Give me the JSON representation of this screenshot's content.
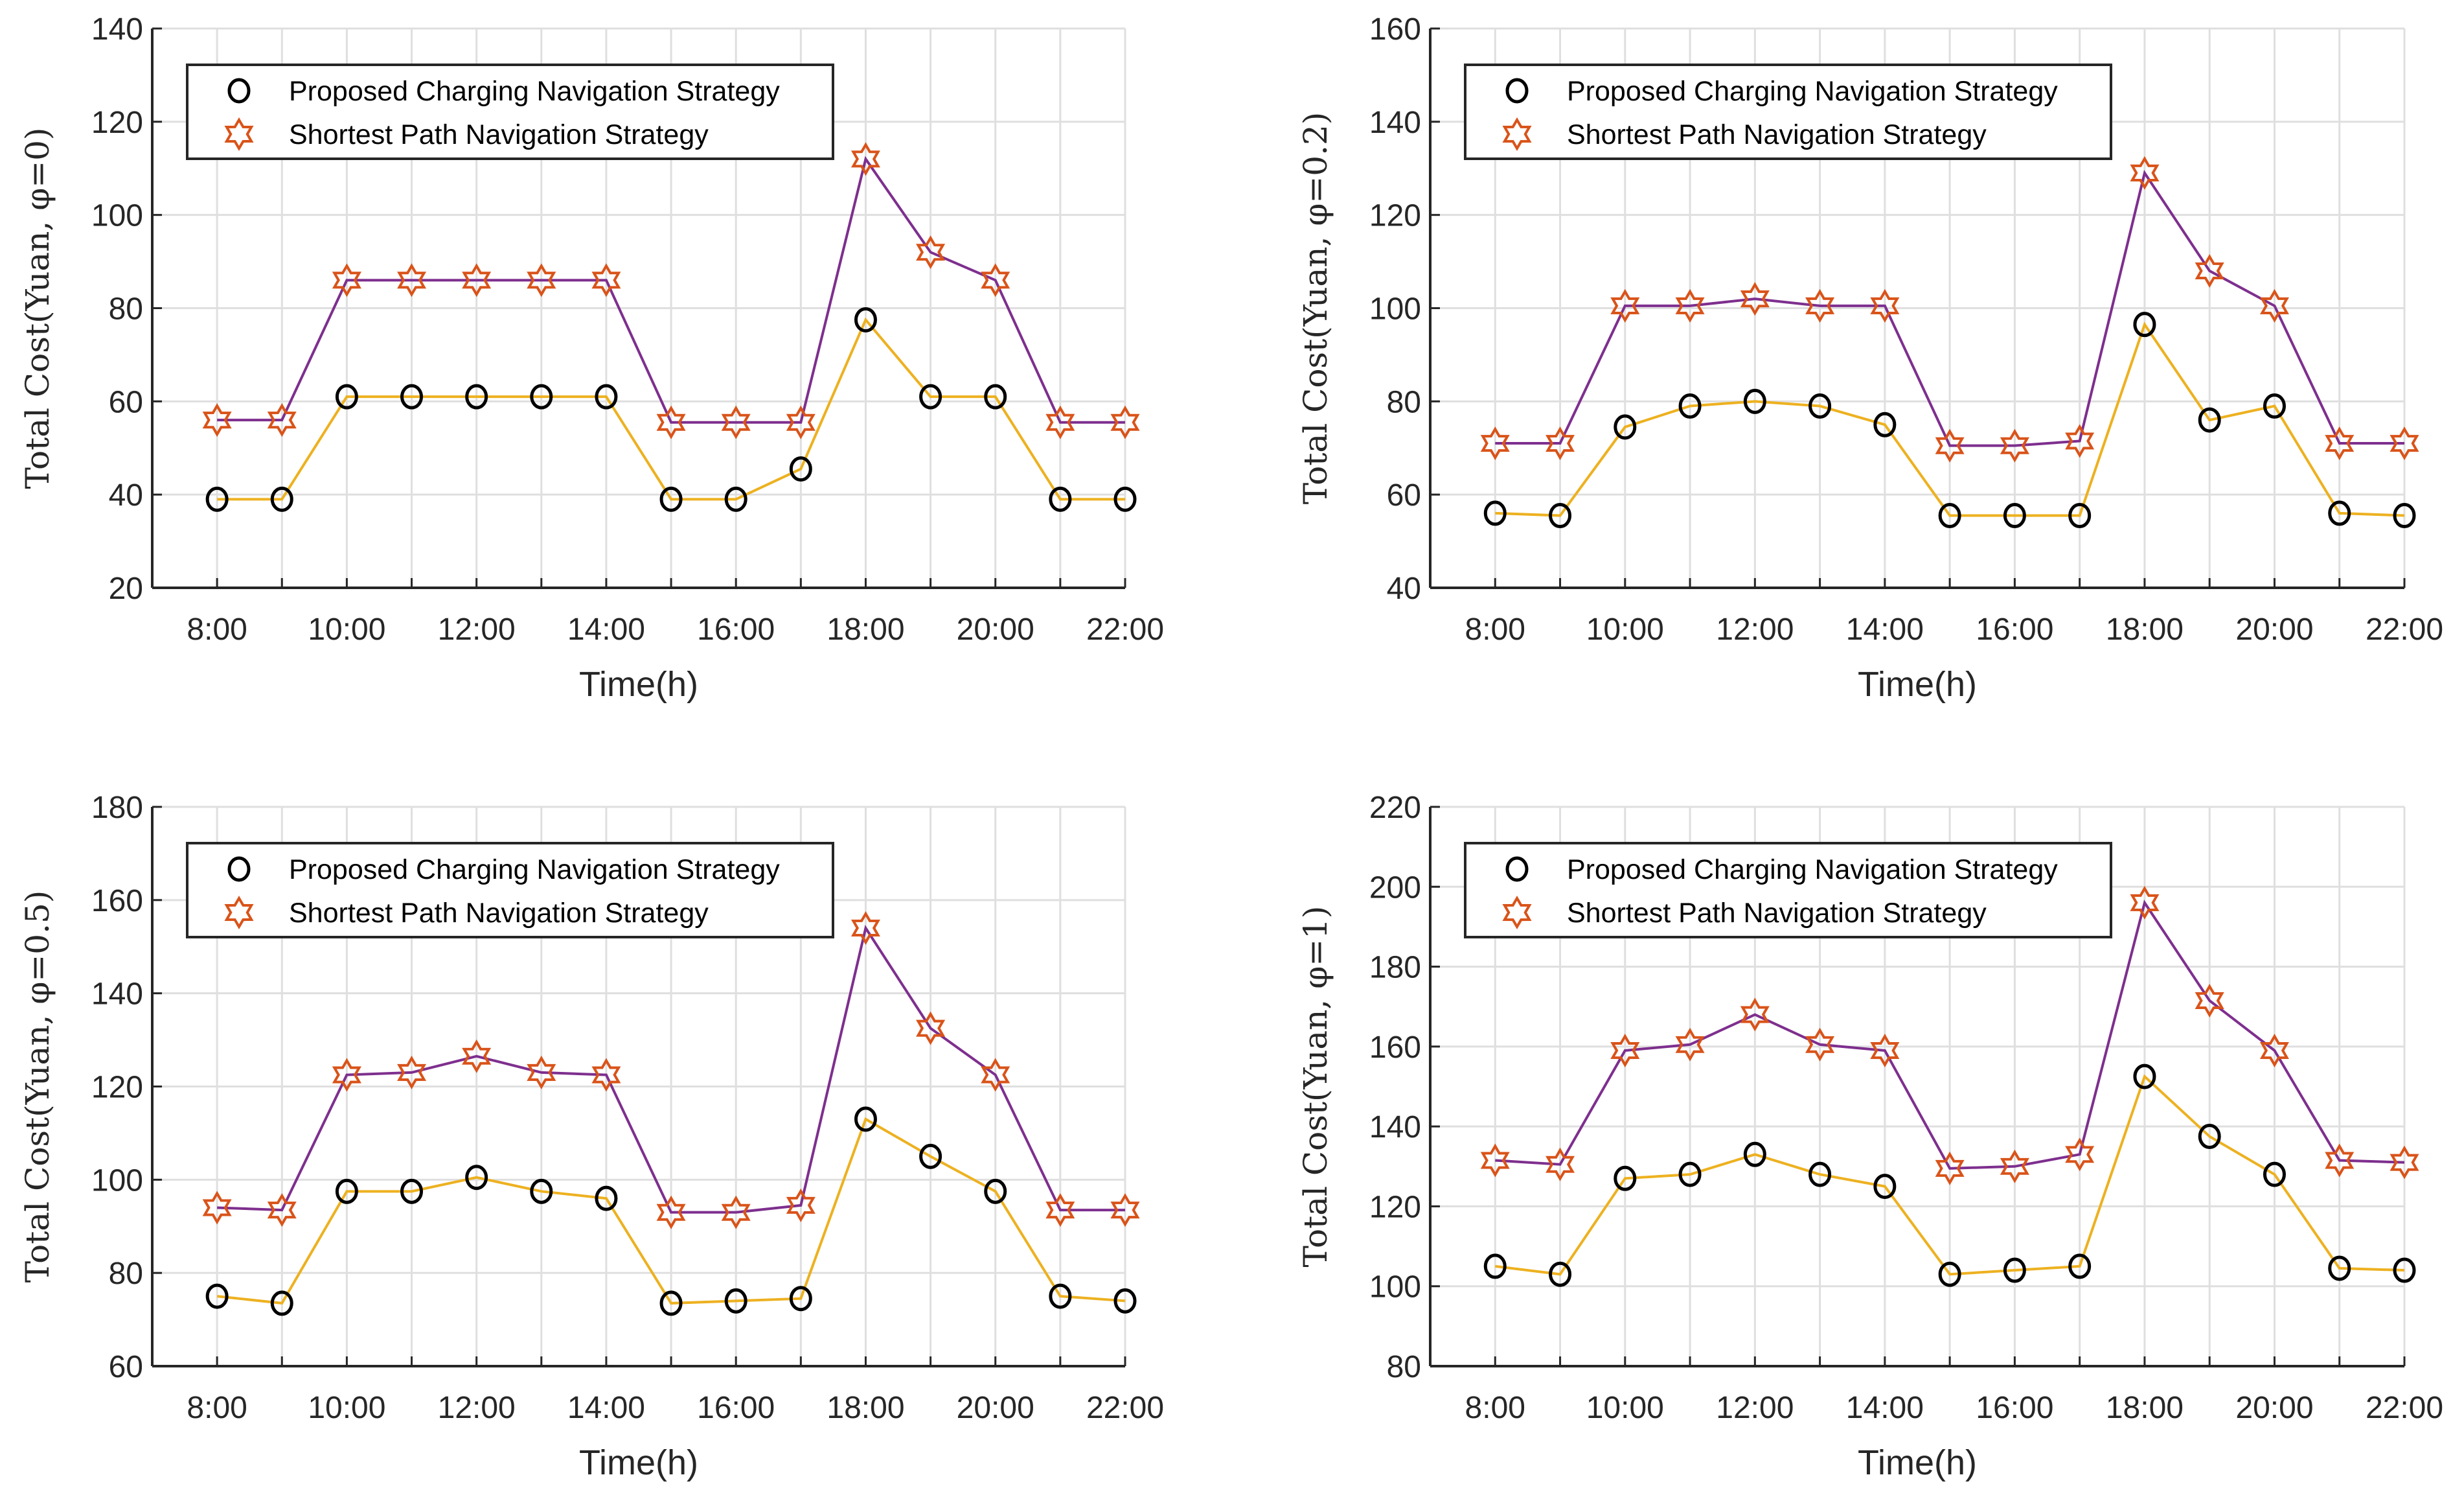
{
  "colors": {
    "proposed_line": "#EDB120",
    "shortest_line": "#7E2F8E",
    "star_marker": "#D95319",
    "circle_marker": "#000000",
    "grid": "#dfdfdf",
    "axis": "#262626"
  },
  "chart_data": [
    {
      "type": "line",
      "title": "",
      "xlabel": "Time(h)",
      "ylabel": "Total Cost(Yuan, φ=0)",
      "x": [
        8,
        9,
        10,
        11,
        12,
        13,
        14,
        15,
        16,
        17,
        18,
        19,
        20,
        21,
        22
      ],
      "xticks": [
        8,
        10,
        12,
        14,
        16,
        18,
        20,
        22
      ],
      "xtick_labels": [
        "8:00",
        "10:00",
        "12:00",
        "14:00",
        "16:00",
        "18:00",
        "20:00",
        "22:00"
      ],
      "xlim": [
        7,
        22
      ],
      "ylim": [
        20,
        140
      ],
      "yticks": [
        20,
        40,
        60,
        80,
        100,
        120,
        140
      ],
      "grid": true,
      "legend_position": "top-left",
      "series": [
        {
          "name": "Proposed Charging Navigation Strategy",
          "marker": "circle",
          "values": [
            39,
            39,
            61,
            61,
            61,
            61,
            61,
            39,
            39,
            45.5,
            77.5,
            61,
            61,
            39,
            39
          ]
        },
        {
          "name": "Shortest Path Navigation Strategy",
          "marker": "hexagram",
          "values": [
            56,
            56,
            86,
            86,
            86,
            86,
            86,
            55.5,
            55.5,
            55.5,
            112,
            92,
            86,
            55.5,
            55.5
          ]
        }
      ]
    },
    {
      "type": "line",
      "title": "",
      "xlabel": "Time(h)",
      "ylabel": "Total Cost(Yuan, φ=0.2)",
      "x": [
        8,
        9,
        10,
        11,
        12,
        13,
        14,
        15,
        16,
        17,
        18,
        19,
        20,
        21,
        22
      ],
      "xticks": [
        8,
        10,
        12,
        14,
        16,
        18,
        20,
        22
      ],
      "xtick_labels": [
        "8:00",
        "10:00",
        "12:00",
        "14:00",
        "16:00",
        "18:00",
        "20:00",
        "22:00"
      ],
      "xlim": [
        7,
        22
      ],
      "ylim": [
        40,
        160
      ],
      "yticks": [
        40,
        60,
        80,
        100,
        120,
        140,
        160
      ],
      "grid": true,
      "legend_position": "top-left",
      "series": [
        {
          "name": "Proposed Charging Navigation Strategy",
          "marker": "circle",
          "values": [
            56,
            55.5,
            74.5,
            79,
            80,
            79,
            75,
            55.5,
            55.5,
            55.5,
            96.5,
            76,
            79,
            56,
            55.5
          ]
        },
        {
          "name": "Shortest Path Navigation Strategy",
          "marker": "hexagram",
          "values": [
            71,
            71,
            100.5,
            100.5,
            102,
            100.5,
            100.5,
            70.5,
            70.5,
            71.5,
            129,
            108,
            100.5,
            71,
            71
          ]
        }
      ]
    },
    {
      "type": "line",
      "title": "",
      "xlabel": "Time(h)",
      "ylabel": "Total Cost(Yuan, φ=0.5)",
      "x": [
        8,
        9,
        10,
        11,
        12,
        13,
        14,
        15,
        16,
        17,
        18,
        19,
        20,
        21,
        22
      ],
      "xticks": [
        8,
        10,
        12,
        14,
        16,
        18,
        20,
        22
      ],
      "xtick_labels": [
        "8:00",
        "10:00",
        "12:00",
        "14:00",
        "16:00",
        "18:00",
        "20:00",
        "22:00"
      ],
      "xlim": [
        7,
        22
      ],
      "ylim": [
        60,
        180
      ],
      "yticks": [
        60,
        80,
        100,
        120,
        140,
        160,
        180
      ],
      "grid": true,
      "legend_position": "top-left",
      "series": [
        {
          "name": "Proposed Charging Navigation Strategy",
          "marker": "circle",
          "values": [
            75,
            73.5,
            97.5,
            97.5,
            100.5,
            97.5,
            96,
            73.5,
            74,
            74.5,
            113,
            105,
            97.5,
            75,
            74
          ]
        },
        {
          "name": "Shortest Path Navigation Strategy",
          "marker": "hexagram",
          "values": [
            94,
            93.5,
            122.5,
            123,
            126.5,
            123,
            122.5,
            93,
            93,
            94.5,
            154,
            132.5,
            122.5,
            93.5,
            93.5
          ]
        }
      ]
    },
    {
      "type": "line",
      "title": "",
      "xlabel": "Time(h)",
      "ylabel": "Total Cost(Yuan, φ=1)",
      "x": [
        8,
        9,
        10,
        11,
        12,
        13,
        14,
        15,
        16,
        17,
        18,
        19,
        20,
        21,
        22
      ],
      "xticks": [
        8,
        10,
        12,
        14,
        16,
        18,
        20,
        22
      ],
      "xtick_labels": [
        "8:00",
        "10:00",
        "12:00",
        "14:00",
        "16:00",
        "18:00",
        "20:00",
        "22:00"
      ],
      "xlim": [
        7,
        22
      ],
      "ylim": [
        80,
        220
      ],
      "yticks": [
        80,
        100,
        120,
        140,
        160,
        180,
        200,
        220
      ],
      "grid": true,
      "legend_position": "top-left",
      "series": [
        {
          "name": "Proposed Charging Navigation Strategy",
          "marker": "circle",
          "values": [
            105,
            103,
            127,
            128,
            133,
            128,
            125,
            103,
            104,
            105,
            152.5,
            137.5,
            128,
            104.5,
            104
          ]
        },
        {
          "name": "Shortest Path Navigation Strategy",
          "marker": "hexagram",
          "values": [
            131.5,
            130.5,
            159,
            160.5,
            168,
            160.5,
            159,
            129.5,
            130,
            133,
            196,
            171.5,
            159,
            131.5,
            131
          ]
        }
      ]
    }
  ]
}
